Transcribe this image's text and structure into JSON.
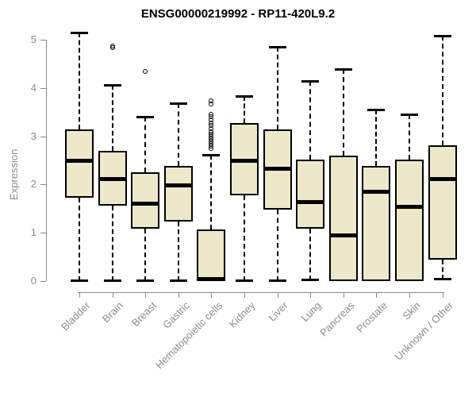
{
  "title": "ENSG00000219992 - RP11-420L9.2",
  "chart_data": {
    "type": "box",
    "title": "ENSG00000219992 - RP11-420L9.2",
    "xlabel": "",
    "ylabel": "Expression",
    "ylim": [
      0,
      5
    ],
    "yticks": [
      0,
      1,
      2,
      3,
      4,
      5
    ],
    "grid": false,
    "legend": "none",
    "box_fill_color": "#EDE8C9",
    "box_border_color": "#000000",
    "axis_color": "#8a8a8a",
    "axis_text_color": "#8c8c8c",
    "title_color": "#000000",
    "categories": [
      "Bladder",
      "Brain",
      "Breast",
      "Gastric",
      "Hematopoietic cells",
      "Kidney",
      "Liver",
      "Lung",
      "Pancreas",
      "Prostate",
      "Skin",
      "Unknown / Other"
    ],
    "series": [
      {
        "category": "Bladder",
        "min": 0.0,
        "q1": 1.72,
        "median": 2.5,
        "q3": 3.14,
        "max": 5.15,
        "outliers": []
      },
      {
        "category": "Brain",
        "min": 0.0,
        "q1": 1.56,
        "median": 2.11,
        "q3": 2.69,
        "max": 4.07,
        "outliers": [
          4.84,
          4.87
        ]
      },
      {
        "category": "Breast",
        "min": 0.0,
        "q1": 1.09,
        "median": 1.61,
        "q3": 2.25,
        "max": 3.4,
        "outliers": [
          4.35
        ]
      },
      {
        "category": "Gastric",
        "min": 0.0,
        "q1": 1.23,
        "median": 1.99,
        "q3": 2.38,
        "max": 3.68,
        "outliers": []
      },
      {
        "category": "Hematopoietic cells",
        "min": 0.0,
        "q1": 0.0,
        "median": 0.04,
        "q3": 1.07,
        "max": 2.61,
        "outliers": [
          2.75,
          2.8,
          2.85,
          2.9,
          2.95,
          3.0,
          3.05,
          3.1,
          3.16,
          3.22,
          3.28,
          3.34,
          3.4,
          3.46,
          3.66,
          3.74
        ]
      },
      {
        "category": "Kidney",
        "min": 0.0,
        "q1": 1.78,
        "median": 2.5,
        "q3": 3.28,
        "max": 3.84,
        "outliers": []
      },
      {
        "category": "Liver",
        "min": 0.0,
        "q1": 1.48,
        "median": 2.32,
        "q3": 3.14,
        "max": 4.86,
        "outliers": []
      },
      {
        "category": "Lung",
        "min": 0.02,
        "q1": 1.09,
        "median": 1.63,
        "q3": 2.52,
        "max": 4.15,
        "outliers": []
      },
      {
        "category": "Pancreas",
        "min": 0.0,
        "q1": 0.0,
        "median": 0.95,
        "q3": 2.6,
        "max": 4.39,
        "outliers": []
      },
      {
        "category": "Prostate",
        "min": 0.0,
        "q1": 0.0,
        "median": 1.85,
        "q3": 2.38,
        "max": 3.56,
        "outliers": []
      },
      {
        "category": "Skin",
        "min": 0.0,
        "q1": 0.0,
        "median": 1.53,
        "q3": 2.51,
        "max": 3.46,
        "outliers": []
      },
      {
        "category": "Unknown / Other",
        "min": 0.03,
        "q1": 0.45,
        "median": 2.12,
        "q3": 2.81,
        "max": 5.08,
        "outliers": []
      }
    ]
  }
}
